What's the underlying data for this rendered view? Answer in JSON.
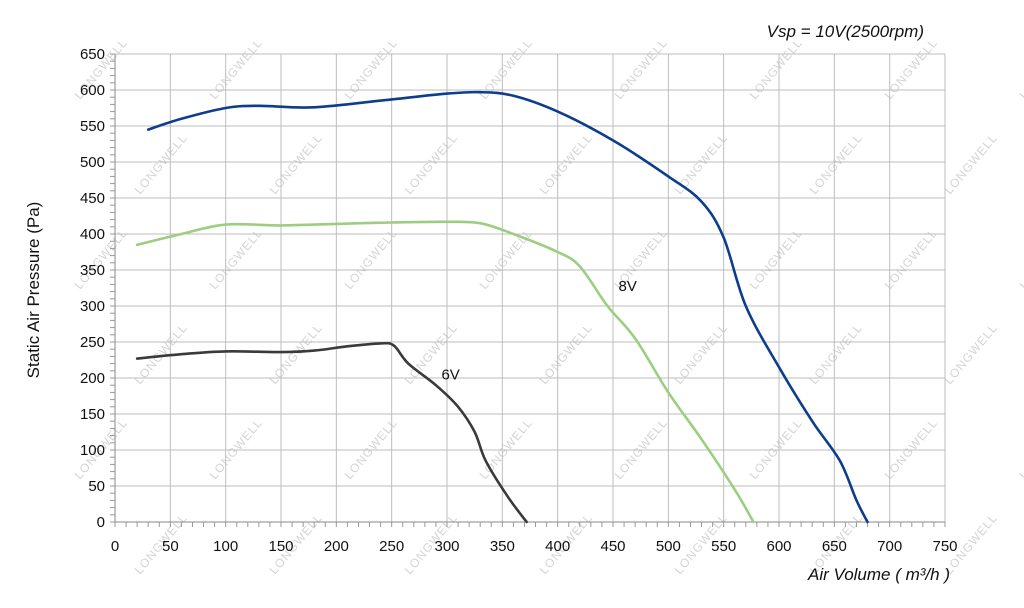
{
  "watermark": "LONGWELL",
  "chart_data": {
    "type": "line",
    "title": "",
    "subtitle": "Vsp = 10V(2500rpm)",
    "xlabel": "Air Volume ( m³/h )",
    "ylabel": "Static Air Pressure  (Pa)",
    "xlim": [
      0,
      750
    ],
    "ylim": [
      0,
      650
    ],
    "x_ticks": [
      0,
      50,
      100,
      150,
      200,
      250,
      300,
      350,
      400,
      450,
      500,
      550,
      600,
      650,
      700,
      750
    ],
    "y_ticks": [
      0,
      50,
      100,
      150,
      200,
      250,
      300,
      350,
      400,
      450,
      500,
      550,
      600,
      650
    ],
    "grid": true,
    "legend": "none",
    "series": [
      {
        "name": "",
        "color": "#0d3d8c",
        "points": [
          [
            30,
            545
          ],
          [
            60,
            560
          ],
          [
            100,
            575
          ],
          [
            130,
            578
          ],
          [
            180,
            576
          ],
          [
            250,
            587
          ],
          [
            300,
            595
          ],
          [
            330,
            597
          ],
          [
            360,
            592
          ],
          [
            400,
            570
          ],
          [
            450,
            530
          ],
          [
            500,
            480
          ],
          [
            530,
            445
          ],
          [
            550,
            395
          ],
          [
            570,
            300
          ],
          [
            600,
            215
          ],
          [
            630,
            140
          ],
          [
            655,
            85
          ],
          [
            670,
            30
          ],
          [
            680,
            0
          ]
        ]
      },
      {
        "name": "8V",
        "color": "#9cce82",
        "points": [
          [
            20,
            385
          ],
          [
            60,
            400
          ],
          [
            100,
            413
          ],
          [
            150,
            412
          ],
          [
            200,
            414
          ],
          [
            250,
            416
          ],
          [
            300,
            417
          ],
          [
            330,
            415
          ],
          [
            360,
            400
          ],
          [
            400,
            375
          ],
          [
            420,
            355
          ],
          [
            445,
            300
          ],
          [
            470,
            255
          ],
          [
            500,
            180
          ],
          [
            530,
            115
          ],
          [
            560,
            45
          ],
          [
            577,
            0
          ]
        ]
      },
      {
        "name": "6V",
        "color": "#3a3a3a",
        "points": [
          [
            20,
            227
          ],
          [
            60,
            233
          ],
          [
            100,
            237
          ],
          [
            150,
            236
          ],
          [
            180,
            238
          ],
          [
            210,
            244
          ],
          [
            240,
            248
          ],
          [
            252,
            245
          ],
          [
            265,
            220
          ],
          [
            290,
            190
          ],
          [
            310,
            160
          ],
          [
            325,
            125
          ],
          [
            335,
            85
          ],
          [
            355,
            35
          ],
          [
            372,
            0
          ]
        ]
      }
    ],
    "annotations": [
      {
        "text": "8V",
        "x": 455,
        "y": 328
      },
      {
        "text": "6V",
        "x": 295,
        "y": 205
      }
    ]
  }
}
